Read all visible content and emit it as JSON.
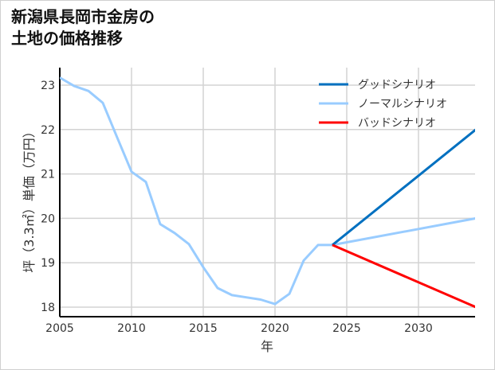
{
  "title": {
    "line1": "新潟県長岡市金房の",
    "line2": "土地の価格推移"
  },
  "chart_data": {
    "type": "line",
    "title": "新潟県長岡市金房の土地の価格推移",
    "xlabel": "年",
    "ylabel": "坪（3.3㎡）単価（万円）",
    "xlim": [
      2005,
      2034
    ],
    "ylim": [
      17.75,
      23.4
    ],
    "xticks": [
      2005,
      2010,
      2015,
      2020,
      2025,
      2030
    ],
    "yticks": [
      18,
      19,
      20,
      21,
      22,
      23
    ],
    "grid": true,
    "legend_position": "upper right",
    "series": [
      {
        "name": "グッドシナリオ",
        "color": "#0070c0",
        "x": [
          2024,
          2034
        ],
        "values": [
          19.4,
          22.0
        ]
      },
      {
        "name": "ノーマルシナリオ",
        "color": "#99ccff",
        "x": [
          2005,
          2006,
          2007,
          2008,
          2009,
          2010,
          2011,
          2012,
          2013,
          2014,
          2015,
          2016,
          2017,
          2018,
          2019,
          2020,
          2021,
          2022,
          2023,
          2024,
          2034
        ],
        "values": [
          23.17,
          22.98,
          22.87,
          22.6,
          21.82,
          21.05,
          20.82,
          19.87,
          19.67,
          19.42,
          18.9,
          18.43,
          18.27,
          18.22,
          18.17,
          18.07,
          18.3,
          19.05,
          19.4,
          19.4,
          20.0
        ]
      },
      {
        "name": "バッドシナリオ",
        "color": "#ff0000",
        "x": [
          2024,
          2034
        ],
        "values": [
          19.4,
          18.0
        ]
      }
    ]
  },
  "axis": {
    "x_label": "年",
    "y_label": "坪（3.3㎡）単価（万円）",
    "x_ticks": [
      "2005",
      "2010",
      "2015",
      "2020",
      "2025",
      "2030"
    ],
    "y_ticks": [
      "18",
      "19",
      "20",
      "21",
      "22",
      "23"
    ]
  },
  "legend": [
    {
      "label": "グッドシナリオ",
      "color": "#0070c0"
    },
    {
      "label": "ノーマルシナリオ",
      "color": "#99ccff"
    },
    {
      "label": "バッドシナリオ",
      "color": "#ff0000"
    }
  ]
}
